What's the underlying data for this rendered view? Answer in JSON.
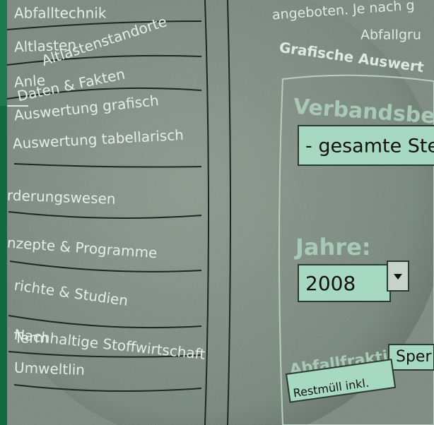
{
  "menu": [
    "Abfalltechnik",
    "Altlasten",
    "Altlastenstandorte",
    "Anle",
    "Daten & Fakten",
    "Auswertung grafisch",
    "Auswertung tabellarisch",
    "rderungswesen",
    "nzepte & Programme",
    "richte & Studien",
    "Nachhaltige Stoffwirtschaft",
    "Term",
    "Umweltlin"
  ],
  "content": {
    "intro": "angeboten. Je nach g",
    "intro2": "Abfallgru",
    "heading": "Grafische Auswert",
    "form": {
      "region_label": "Verbandsbere",
      "region_value": "- gesamte Ste",
      "year_label": "Jahre:",
      "year_value": "2008",
      "fraction_label": "Abfallfraktion",
      "fraction_value": "Sper",
      "fraction_option": "Restmüll inkl."
    }
  }
}
